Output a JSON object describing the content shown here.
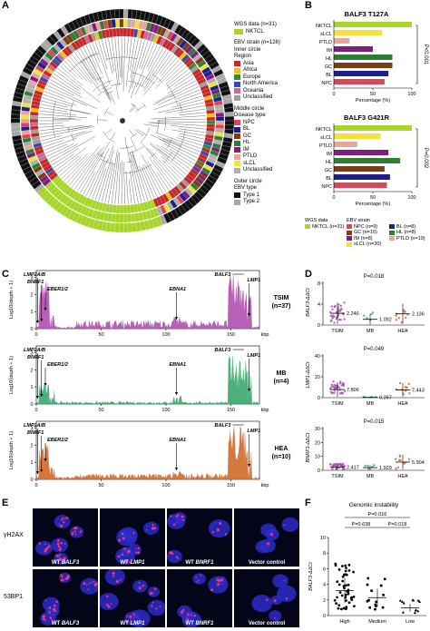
{
  "panels": {
    "A": "A",
    "B": "B",
    "C": "C",
    "D": "D",
    "E": "E",
    "F": "F"
  },
  "panelA": {
    "legend": {
      "wgs_title": "WGS data (n=31)",
      "wgs_item": "NKTCL",
      "ebv_title": "EBV strain (n=126)",
      "inner_circle": "Inner circle",
      "region_title": "Region",
      "regions": [
        {
          "label": "Asia",
          "color": "#c62828"
        },
        {
          "label": "Africa",
          "color": "#f2c01c"
        },
        {
          "label": "Europe",
          "color": "#2e8b3c"
        },
        {
          "label": "North America",
          "color": "#3b4aa8"
        },
        {
          "label": "Oceania",
          "color": "#c96a9e"
        },
        {
          "label": "Unclassified",
          "color": "#9e9e9e"
        }
      ],
      "middle_circle": "Middle circle",
      "disease_title": "Disease type",
      "diseases": [
        {
          "label": "NPC",
          "color": "#d9475a"
        },
        {
          "label": "BL",
          "color": "#1d1f8c"
        },
        {
          "label": "GC",
          "color": "#7b3d14"
        },
        {
          "label": "HL",
          "color": "#2e7d32"
        },
        {
          "label": "IM",
          "color": "#7d1f7d"
        },
        {
          "label": "PTLD",
          "color": "#e8a59c"
        },
        {
          "label": "sLCL",
          "color": "#f4e23c"
        },
        {
          "label": "Unclassified",
          "color": "#b0b0b0"
        }
      ],
      "outer_circle": "Outer circle",
      "ebv_type_title": "EBV type",
      "types": [
        {
          "label": "Type 1",
          "color": "#111111"
        },
        {
          "label": "Type 2",
          "color": "#a8a8a8"
        }
      ]
    }
  },
  "panelB": {
    "chart_data": [
      {
        "type": "bar",
        "title": "BALF3 T127A",
        "categories": [
          "NKTCL",
          "sLCL",
          "PTLD",
          "IM",
          "HL",
          "GC",
          "BL",
          "NPC"
        ],
        "values": [
          100,
          62,
          20,
          50,
          75,
          75,
          70,
          65
        ],
        "xlabel": "Percentage (%)",
        "xlim": [
          0,
          100
        ],
        "xticks": [
          "0",
          "50",
          "100"
        ],
        "pvalue": "P<0.001"
      },
      {
        "type": "bar",
        "title": "BALF3 G421R",
        "categories": [
          "NKTCL",
          "sLCL",
          "PTLD",
          "IM",
          "HL",
          "GC",
          "BL",
          "NPC"
        ],
        "values": [
          100,
          60,
          30,
          70,
          85,
          65,
          72,
          68
        ],
        "xlabel": "Percentage (%)",
        "xlim": [
          0,
          100
        ],
        "xticks": [
          "0",
          "50",
          "100"
        ],
        "pvalue": "P=0.002"
      }
    ],
    "colors": [
      "#a8d52a",
      "#f4e23c",
      "#e8a59c",
      "#7d1f7d",
      "#2e7d32",
      "#7b3d14",
      "#1d1f8c",
      "#d9475a"
    ],
    "legend": {
      "wgs_title": "WGS data",
      "ebv_title": "EBV strain",
      "wgs_items": [
        "NKTCL (n=31)"
      ],
      "ebv_items": [
        "NPC (n=9)",
        "BL (n=8)",
        "GC (n=16)",
        "HL (n=8)",
        "IM (n=8)",
        "PTLD (n=19)",
        "sLCL (n=30)"
      ]
    }
  },
  "panelC": {
    "ylabel": "Log10(depth + 1)",
    "xunit": "kbp",
    "xticks": [
      "0",
      "50",
      "100",
      "150"
    ],
    "yticks": [
      "0",
      "1",
      "2",
      "3"
    ],
    "tracks": [
      {
        "name": "TSIM",
        "n": "(n=37)",
        "color": "#b04fb0"
      },
      {
        "name": "MB",
        "n": "(n=4)",
        "color": "#3aa76d"
      },
      {
        "name": "HEA",
        "n": "(n=10)",
        "color": "#d06a2c"
      }
    ],
    "annotations": [
      "LMP2A/B",
      "BNRF1",
      "EBER1/2",
      "EBNA1",
      "BALF3",
      "LMP1"
    ]
  },
  "panelD": {
    "chart_data": [
      {
        "type": "scatter",
        "ylabel": "BALF3-ΔΔCt",
        "pvalue": "P=0.018",
        "categories": [
          "TSIM",
          "MB",
          "HEA"
        ],
        "means": [
          2.246,
          1.092,
          2.136
        ],
        "ylim": [
          0,
          8
        ],
        "yticks": [
          "0",
          "4",
          "8"
        ]
      },
      {
        "type": "scatter",
        "ylabel": "LMP1-ΔΔCt",
        "pvalue": "P=0.049",
        "categories": [
          "TSIM",
          "MB",
          "HEA"
        ],
        "means": [
          7.806,
          0.267,
          7.443
        ],
        "ylim": [
          0,
          40
        ],
        "yticks": [
          "0",
          "20",
          "40"
        ]
      },
      {
        "type": "scatter",
        "ylabel": "BNRF1-ΔΔCt",
        "pvalue": "P=0.015",
        "categories": [
          "TSIM",
          "MB",
          "HEA"
        ],
        "means": [
          2.417,
          1.929,
          5.904
        ],
        "ylim": [
          0,
          30
        ],
        "yticks": [
          "0",
          "10",
          "20",
          "30"
        ]
      }
    ],
    "mean_labels": [
      [
        "2.246",
        "1.092",
        "2.136"
      ],
      [
        "7.806",
        "0.267",
        "7.443"
      ],
      [
        "2.417",
        "1.929",
        "5.904"
      ]
    ]
  },
  "panelE": {
    "row_labels": [
      "γH2AX",
      "53BP1"
    ],
    "columns": [
      "WT BALF3",
      "WT LMP1",
      "WT BNRF1",
      "Vector control"
    ],
    "col_prefix": "WT",
    "col_genes": [
      "BALF3",
      "LMP1",
      "BNRF1"
    ],
    "vector_label": "Vector control"
  },
  "panelF": {
    "chart_data": {
      "type": "scatter",
      "title": "Genomic instability",
      "categories": [
        "High",
        "Medium",
        "Low"
      ],
      "ylabel": "BALF3-ΔΔCt",
      "ylim": [
        0,
        10
      ],
      "yticks": [
        "0",
        "2",
        "4",
        "6",
        "8",
        "10"
      ],
      "means": [
        3.2,
        2.3,
        1.0
      ]
    },
    "pvalues": [
      "P=0.016",
      "P=0.638",
      "P=0.018"
    ]
  }
}
